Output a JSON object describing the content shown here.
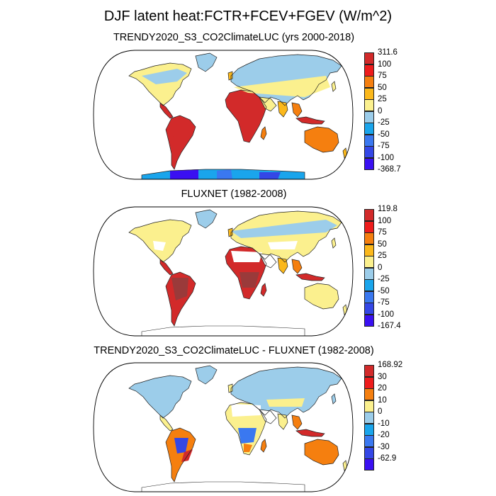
{
  "title": "DJF latent heat:FCTR+FCEV+FGEV (W/m^2)",
  "palette": {
    "dark_red": "#d22a2a",
    "red": "#ee1c1c",
    "orange": "#f57f0f",
    "amber": "#fbb81b",
    "yellow": "#fbf08e",
    "light_blue": "#9ccdea",
    "sky_blue": "#1aa5ec",
    "mid_blue": "#3a78f0",
    "royal_blue": "#3447e6",
    "violet_blue": "#3a10f2",
    "land_dry": "#ffffff"
  },
  "panels": [
    {
      "title": "TRENDY2020_S3_CO2ClimateLUC (yrs 2000-2018)",
      "colorbar": {
        "labels": [
          "311.6",
          "100",
          "75",
          "50",
          "25",
          "0",
          "-25",
          "-50",
          "-75",
          "-100",
          "-368.7"
        ],
        "colors": [
          "#d22a2a",
          "#ee1c1c",
          "#f57f0f",
          "#fbb81b",
          "#fbf08e",
          "#9ccdea",
          "#1aa5ec",
          "#3a78f0",
          "#3447e6",
          "#3a10f2"
        ]
      }
    },
    {
      "title": "FLUXNET (1982-2008)",
      "colorbar": {
        "labels": [
          "119.8",
          "100",
          "75",
          "50",
          "25",
          "0",
          "-25",
          "-50",
          "-75",
          "-100",
          "-167.4"
        ],
        "colors": [
          "#d22a2a",
          "#ee1c1c",
          "#f57f0f",
          "#fbb81b",
          "#fbf08e",
          "#9ccdea",
          "#1aa5ec",
          "#3a78f0",
          "#3447e6",
          "#3a10f2"
        ]
      }
    },
    {
      "title": "TRENDY2020_S3_CO2ClimateLUC - FLUXNET (1982-2008)",
      "colorbar": {
        "labels": [
          "168.92",
          "30",
          "20",
          "10",
          "0",
          "-10",
          "-20",
          "-30",
          "-62.9"
        ],
        "colors": [
          "#d22a2a",
          "#ee1c1c",
          "#f57f0f",
          "#fbf08e",
          "#9ccdea",
          "#1aa5ec",
          "#3a78f0",
          "#3447e6",
          "#3a10f2"
        ]
      }
    }
  ]
}
